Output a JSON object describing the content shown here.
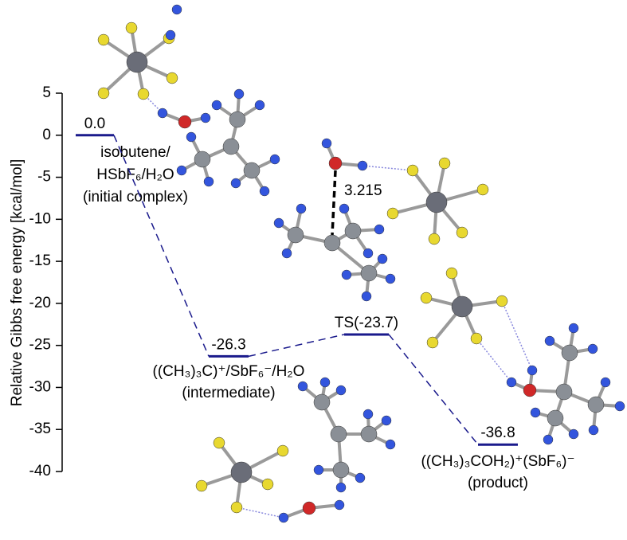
{
  "chart_data": {
    "type": "energy-diagram",
    "y_label": "Relative Gibbs free energy [kcal/mol]",
    "values": [
      0,
      -26.3,
      -23.7,
      -36.8
    ],
    "value_labels": [
      "0.0",
      "-26.3",
      "TS(-23.7)",
      "-36.8"
    ],
    "labels": [
      [
        "isobutene/",
        "HSbF₆/H₂O",
        "(initial complex)"
      ],
      [
        "((CH₃)₃C)⁺/SbF₆⁻/H₂O",
        "(intermediate)"
      ],
      [],
      [
        "((CH₃)₃COH₂)⁺(SbF₆)⁻",
        "(product)"
      ]
    ],
    "annotations": [
      "3.215"
    ],
    "color": "#1a1a8c",
    "ylim": [
      -40,
      5
    ],
    "yticks": [
      5,
      0,
      -5,
      -10,
      -15,
      -20,
      -25,
      -30,
      -35,
      -40
    ]
  }
}
